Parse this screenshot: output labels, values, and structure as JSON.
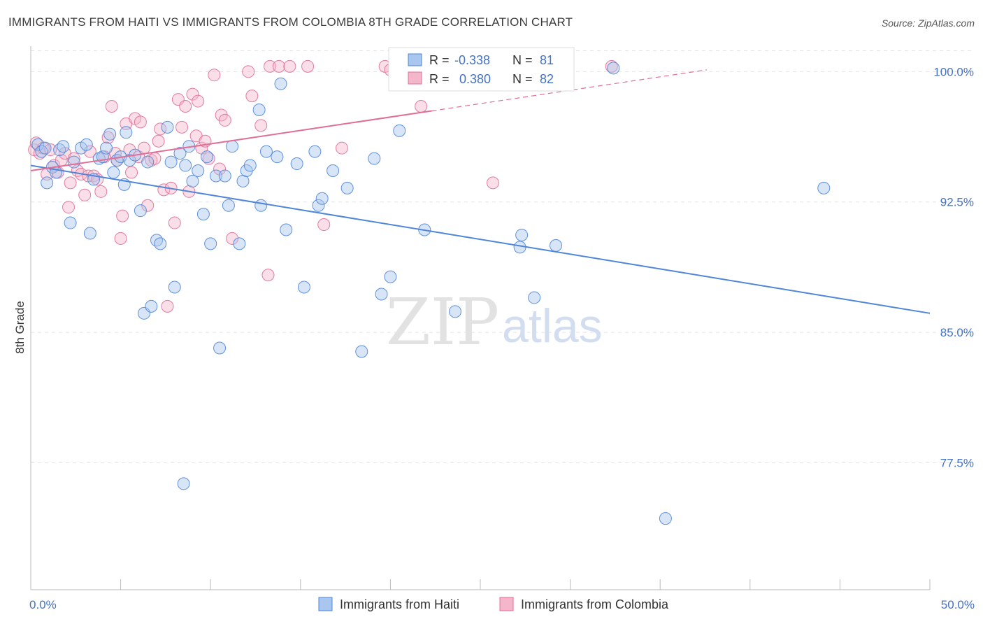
{
  "title": "IMMIGRANTS FROM HAITI VS IMMIGRANTS FROM COLOMBIA 8TH GRADE CORRELATION CHART",
  "source": "Source: ZipAtlas.com",
  "watermark": {
    "part1": "ZIP",
    "part2": "atlas"
  },
  "colors": {
    "haiti": "#4f86d8",
    "haiti_fill": "#a9c6ee",
    "colombia": "#e06f97",
    "colombia_fill": "#f4b6cb",
    "tick": "#4472c4"
  },
  "stats": {
    "haiti": {
      "r_label": "R =",
      "r": "-0.338",
      "n_label": "N =",
      "n": "81"
    },
    "colombia": {
      "r_label": "R =",
      "r": "0.380",
      "n_label": "N =",
      "n": "82"
    }
  },
  "chart_data": {
    "type": "scatter",
    "xlabel": "",
    "ylabel": "8th Grade",
    "xlim": [
      0,
      50
    ],
    "ylim": [
      70,
      101.3
    ],
    "x_tick_labels": [
      "0.0%",
      "50.0%"
    ],
    "y_ticks": [
      77.5,
      85.0,
      92.5,
      100.0
    ],
    "y_tick_labels": [
      "77.5%",
      "85.0%",
      "92.5%",
      "100.0%"
    ],
    "grid": "horizontal dashed",
    "legend_position": "bottom-center",
    "series": [
      {
        "name": "Immigrants from Haiti",
        "trend": {
          "x": [
            0,
            50
          ],
          "y": [
            94.6,
            86.1
          ]
        },
        "points": [
          [
            0.4,
            95.8
          ],
          [
            0.6,
            95.4
          ],
          [
            0.8,
            95.6
          ],
          [
            0.9,
            93.6
          ],
          [
            1.2,
            94.5
          ],
          [
            1.4,
            94.2
          ],
          [
            1.6,
            95.5
          ],
          [
            1.8,
            95.7
          ],
          [
            2.2,
            91.3
          ],
          [
            2.4,
            94.8
          ],
          [
            2.8,
            95.6
          ],
          [
            3.1,
            95.8
          ],
          [
            3.3,
            90.7
          ],
          [
            3.5,
            93.8
          ],
          [
            3.8,
            95.0
          ],
          [
            4.0,
            95.1
          ],
          [
            4.2,
            95.6
          ],
          [
            4.4,
            96.4
          ],
          [
            4.6,
            94.2
          ],
          [
            4.8,
            94.9
          ],
          [
            5.0,
            95.1
          ],
          [
            5.2,
            93.5
          ],
          [
            5.3,
            96.5
          ],
          [
            5.5,
            94.9
          ],
          [
            5.8,
            95.2
          ],
          [
            6.1,
            92.0
          ],
          [
            6.3,
            86.1
          ],
          [
            6.5,
            94.8
          ],
          [
            6.7,
            86.5
          ],
          [
            7.0,
            90.3
          ],
          [
            7.2,
            90.1
          ],
          [
            7.6,
            96.8
          ],
          [
            7.8,
            94.8
          ],
          [
            8.0,
            87.6
          ],
          [
            8.3,
            95.3
          ],
          [
            8.6,
            94.6
          ],
          [
            8.5,
            76.3
          ],
          [
            8.8,
            95.7
          ],
          [
            9.0,
            93.7
          ],
          [
            9.3,
            94.3
          ],
          [
            9.6,
            91.8
          ],
          [
            9.8,
            95.1
          ],
          [
            10.0,
            90.1
          ],
          [
            10.3,
            94.0
          ],
          [
            10.5,
            84.1
          ],
          [
            10.8,
            94.0
          ],
          [
            11.0,
            92.3
          ],
          [
            11.2,
            95.7
          ],
          [
            11.6,
            90.1
          ],
          [
            11.8,
            93.7
          ],
          [
            12.0,
            94.3
          ],
          [
            12.2,
            94.6
          ],
          [
            12.7,
            97.8
          ],
          [
            12.8,
            92.3
          ],
          [
            13.1,
            95.4
          ],
          [
            13.7,
            95.1
          ],
          [
            13.9,
            99.3
          ],
          [
            14.2,
            90.9
          ],
          [
            14.8,
            94.7
          ],
          [
            15.2,
            87.6
          ],
          [
            15.8,
            95.4
          ],
          [
            16.0,
            92.3
          ],
          [
            16.2,
            92.7
          ],
          [
            16.8,
            94.3
          ],
          [
            17.6,
            93.3
          ],
          [
            18.4,
            83.9
          ],
          [
            19.1,
            95.0
          ],
          [
            19.5,
            87.2
          ],
          [
            20.0,
            88.2
          ],
          [
            20.5,
            96.6
          ],
          [
            21.9,
            90.9
          ],
          [
            23.6,
            86.2
          ],
          [
            27.2,
            89.9
          ],
          [
            27.3,
            90.6
          ],
          [
            28.0,
            87.0
          ],
          [
            29.2,
            90.0
          ],
          [
            32.4,
            100.2
          ],
          [
            35.3,
            74.3
          ],
          [
            44.1,
            93.3
          ]
        ]
      },
      {
        "name": "Immigrants from Colombia",
        "trend": {
          "x": [
            0,
            37.6
          ],
          "y": [
            94.3,
            100.1
          ]
        },
        "points": [
          [
            0.2,
            95.5
          ],
          [
            0.3,
            95.9
          ],
          [
            0.5,
            95.3
          ],
          [
            0.7,
            95.6
          ],
          [
            0.9,
            94.1
          ],
          [
            1.1,
            95.5
          ],
          [
            1.3,
            94.6
          ],
          [
            1.5,
            94.2
          ],
          [
            1.7,
            94.9
          ],
          [
            1.9,
            95.3
          ],
          [
            2.1,
            92.2
          ],
          [
            2.2,
            93.6
          ],
          [
            2.4,
            95.0
          ],
          [
            2.6,
            94.3
          ],
          [
            2.8,
            94.1
          ],
          [
            3.0,
            92.9
          ],
          [
            3.2,
            94.0
          ],
          [
            3.3,
            95.4
          ],
          [
            3.5,
            94.0
          ],
          [
            3.7,
            93.8
          ],
          [
            3.9,
            93.1
          ],
          [
            4.1,
            95.1
          ],
          [
            4.3,
            96.2
          ],
          [
            4.5,
            98.0
          ],
          [
            4.7,
            95.3
          ],
          [
            4.8,
            94.9
          ],
          [
            5.0,
            90.4
          ],
          [
            5.1,
            91.7
          ],
          [
            5.3,
            97.0
          ],
          [
            5.5,
            95.5
          ],
          [
            5.6,
            94.2
          ],
          [
            5.8,
            97.3
          ],
          [
            6.0,
            95.1
          ],
          [
            6.1,
            97.1
          ],
          [
            6.3,
            95.6
          ],
          [
            6.5,
            92.3
          ],
          [
            6.7,
            94.9
          ],
          [
            6.9,
            95.0
          ],
          [
            7.1,
            96.0
          ],
          [
            7.2,
            96.7
          ],
          [
            7.4,
            93.2
          ],
          [
            7.6,
            86.5
          ],
          [
            7.8,
            93.3
          ],
          [
            8.0,
            91.3
          ],
          [
            8.2,
            98.4
          ],
          [
            8.4,
            96.8
          ],
          [
            8.6,
            98.0
          ],
          [
            8.8,
            93.1
          ],
          [
            9.0,
            98.7
          ],
          [
            9.2,
            96.3
          ],
          [
            9.3,
            98.3
          ],
          [
            9.5,
            95.6
          ],
          [
            9.7,
            96.0
          ],
          [
            9.9,
            95.0
          ],
          [
            10.2,
            99.8
          ],
          [
            10.5,
            94.4
          ],
          [
            10.6,
            97.5
          ],
          [
            10.8,
            97.2
          ],
          [
            11.2,
            90.4
          ],
          [
            12.1,
            100.0
          ],
          [
            12.3,
            98.6
          ],
          [
            12.8,
            96.9
          ],
          [
            13.2,
            88.3
          ],
          [
            13.3,
            100.3
          ],
          [
            13.8,
            100.3
          ],
          [
            14.4,
            100.3
          ],
          [
            15.4,
            100.3
          ],
          [
            16.3,
            91.2
          ],
          [
            17.3,
            95.6
          ],
          [
            19.7,
            100.3
          ],
          [
            20.0,
            100.1
          ],
          [
            20.5,
            100.1
          ],
          [
            21.7,
            98.0
          ],
          [
            22.1,
            100.3
          ],
          [
            25.7,
            93.6
          ],
          [
            27.6,
            100.3
          ],
          [
            28.2,
            100.3
          ],
          [
            29.3,
            99.7
          ],
          [
            32.3,
            100.3
          ]
        ]
      }
    ]
  }
}
